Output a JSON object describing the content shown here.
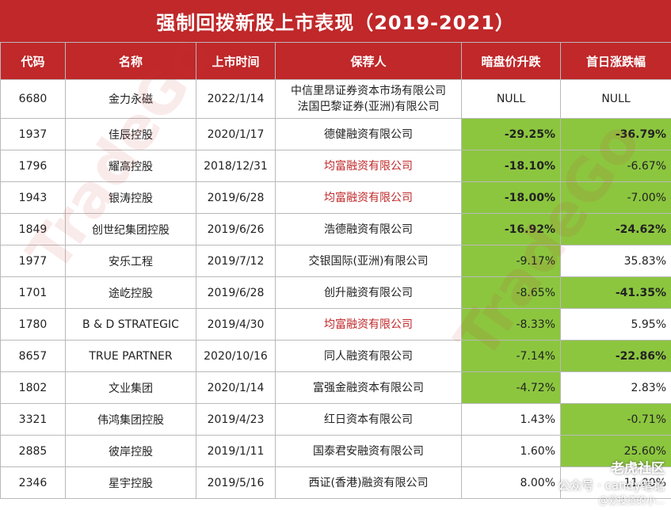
{
  "title": "强制回拨新股上市表现（2019-2021）",
  "headers": [
    "代码",
    "名称",
    "上市时间",
    "保荐人",
    "暗盘价升跌",
    "首日涨跌幅"
  ],
  "rows": [
    {
      "code": "6680",
      "name": "金力永磁",
      "date": "2022/1/14",
      "sponsor_lines": [
        "中信里昂证券资本市场有限公司",
        "法国巴黎证券(亚洲)有限公司"
      ],
      "sponsor_color": "default",
      "dark": "NULL",
      "dark_style": "none",
      "first": "NULL",
      "first_style": "none"
    },
    {
      "code": "1937",
      "name": "佳辰控股",
      "date": "2020/1/17",
      "sponsor_lines": [
        "德健融资有限公司"
      ],
      "sponsor_color": "default",
      "dark": "-29.25%",
      "dark_style": "green-bold",
      "first": "-36.79%",
      "first_style": "green-bold"
    },
    {
      "code": "1796",
      "name": "耀高控股",
      "date": "2018/12/31",
      "sponsor_lines": [
        "均富融资有限公司"
      ],
      "sponsor_color": "red",
      "dark": "-18.10%",
      "dark_style": "green-bold",
      "first": "-6.67%",
      "first_style": "green"
    },
    {
      "code": "1943",
      "name": "银涛控股",
      "date": "2019/6/28",
      "sponsor_lines": [
        "均富融资有限公司"
      ],
      "sponsor_color": "red",
      "dark": "-18.00%",
      "dark_style": "green-bold",
      "first": "-7.00%",
      "first_style": "green"
    },
    {
      "code": "1849",
      "name": "创世纪集团控股",
      "date": "2019/6/26",
      "sponsor_lines": [
        "浩德融资有限公司"
      ],
      "sponsor_color": "default",
      "dark": "-16.92%",
      "dark_style": "green-bold",
      "first": "-24.62%",
      "first_style": "green-bold"
    },
    {
      "code": "1977",
      "name": "安乐工程",
      "date": "2019/7/12",
      "sponsor_lines": [
        "交银国际(亚洲)有限公司"
      ],
      "sponsor_color": "default",
      "dark": "-9.17%",
      "dark_style": "green",
      "first": "35.83%",
      "first_style": "none"
    },
    {
      "code": "1701",
      "name": "途屹控股",
      "date": "2019/6/28",
      "sponsor_lines": [
        "创升融资有限公司"
      ],
      "sponsor_color": "default",
      "dark": "-8.65%",
      "dark_style": "green",
      "first": "-41.35%",
      "first_style": "green-bold"
    },
    {
      "code": "1780",
      "name": "B & D STRATEGIC",
      "date": "2019/4/30",
      "sponsor_lines": [
        "均富融资有限公司"
      ],
      "sponsor_color": "red",
      "dark": "-8.33%",
      "dark_style": "green",
      "first": "5.95%",
      "first_style": "none"
    },
    {
      "code": "8657",
      "name": "TRUE PARTNER",
      "date": "2020/10/16",
      "sponsor_lines": [
        "同人融资有限公司"
      ],
      "sponsor_color": "default",
      "dark": "-7.14%",
      "dark_style": "green",
      "first": "-22.86%",
      "first_style": "green-bold"
    },
    {
      "code": "1802",
      "name": "文业集团",
      "date": "2020/1/14",
      "sponsor_lines": [
        "富强金融资本有限公司"
      ],
      "sponsor_color": "default",
      "dark": "-4.72%",
      "dark_style": "green",
      "first": "2.83%",
      "first_style": "none"
    },
    {
      "code": "3321",
      "name": "伟鸿集团控股",
      "date": "2019/4/23",
      "sponsor_lines": [
        "红日资本有限公司"
      ],
      "sponsor_color": "default",
      "dark": "1.43%",
      "dark_style": "none",
      "first": "-0.71%",
      "first_style": "green"
    },
    {
      "code": "2885",
      "name": "彼岸控股",
      "date": "2019/1/11",
      "sponsor_lines": [
        "国泰君安融资有限公司"
      ],
      "sponsor_color": "default",
      "dark": "1.60%",
      "dark_style": "none",
      "first": "25.60%",
      "first_style": "green"
    },
    {
      "code": "2346",
      "name": "星宇控股",
      "date": "2019/5/16",
      "sponsor_lines": [
        "西证(香港)融资有限公司"
      ],
      "sponsor_color": "default",
      "dark": "8.00%",
      "dark_style": "none",
      "first": "11.00%",
      "first_style": "none"
    }
  ],
  "watermark": "TradeGo",
  "overlay": {
    "community": "老虎社区",
    "account": "公众号 · candy笔记",
    "handle": "@爱投资的小..."
  },
  "colors": {
    "header_bg": "#c0282a",
    "green_fill": "#8cc63f",
    "red_text": "#c0282a"
  }
}
